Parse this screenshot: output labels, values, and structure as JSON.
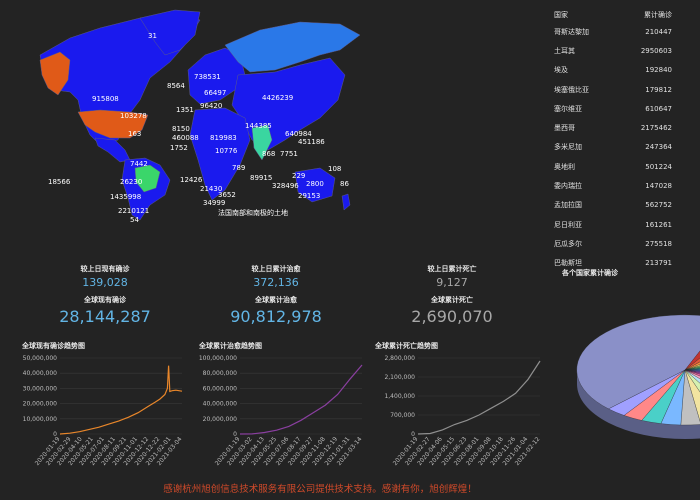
{
  "map": {
    "labels": [
      {
        "text": "31"
      },
      {
        "text": "738531"
      },
      {
        "text": "8564"
      },
      {
        "text": "66497"
      },
      {
        "text": "4426239"
      },
      {
        "text": "915808"
      },
      {
        "text": "96420"
      },
      {
        "text": "1351"
      },
      {
        "text": "103278"
      },
      {
        "text": "163"
      },
      {
        "text": "8150"
      },
      {
        "text": "144385"
      },
      {
        "text": "460088"
      },
      {
        "text": "819983"
      },
      {
        "text": "640984"
      },
      {
        "text": "1752"
      },
      {
        "text": "10776"
      },
      {
        "text": "451186"
      },
      {
        "text": "868"
      },
      {
        "text": "7751"
      },
      {
        "text": "7442"
      },
      {
        "text": "12426"
      },
      {
        "text": "789"
      },
      {
        "text": "108"
      },
      {
        "text": "18566"
      },
      {
        "text": "26230"
      },
      {
        "text": "21430"
      },
      {
        "text": "89915"
      },
      {
        "text": "229"
      },
      {
        "text": "86"
      },
      {
        "text": "328496"
      },
      {
        "text": "2800"
      },
      {
        "text": "1435998"
      },
      {
        "text": "3652"
      },
      {
        "text": "29153"
      },
      {
        "text": "2210121"
      },
      {
        "text": "34999"
      },
      {
        "text": "54"
      },
      {
        "text": "法国南部和南极的土地"
      }
    ]
  },
  "table": {
    "headers": [
      "国家",
      "累计确诊"
    ],
    "rows": [
      {
        "name": "哥斯达黎加",
        "value": "210447"
      },
      {
        "name": "土耳其",
        "value": "2950603"
      },
      {
        "name": "埃及",
        "value": "192840"
      },
      {
        "name": "埃塞俄比亚",
        "value": "179812"
      },
      {
        "name": "塞尔维亚",
        "value": "610647"
      },
      {
        "name": "墨西哥",
        "value": "2175462"
      },
      {
        "name": "多米尼加",
        "value": "247364"
      },
      {
        "name": "奥地利",
        "value": "501224"
      },
      {
        "name": "委内瑞拉",
        "value": "147028"
      },
      {
        "name": "孟加拉国",
        "value": "562752"
      },
      {
        "name": "尼日利亚",
        "value": "161261"
      },
      {
        "name": "厄瓜多尔",
        "value": "275518"
      },
      {
        "name": "巴勒斯坦",
        "value": "213791"
      }
    ]
  },
  "stats": {
    "current": {
      "label1": "较上日现有确诊",
      "value1": "139,028",
      "label2": "全球现有确诊",
      "value2": "28,144,287"
    },
    "cured": {
      "label1": "较上日累计治愈",
      "value1": "372,136",
      "label2": "全球累计治愈",
      "value2": "90,812,978"
    },
    "deaths": {
      "label1": "较上日累计死亡",
      "value1": "9,127",
      "label2": "全球累计死亡",
      "value2": "2,690,070"
    }
  },
  "pie_title": "各个国家累计确诊",
  "footer": "感谢杭州旭创信息技术服务有限公司提供技术支持。感谢有你，旭创辉煌！",
  "chart_data": [
    {
      "type": "line",
      "title": "全球现有确诊趋势图",
      "color": "#e8862a",
      "ylim": [
        0,
        50000000
      ],
      "yticks": [
        "0",
        "10,000,000",
        "20,000,000",
        "30,000,000",
        "40,000,000",
        "50,000,000"
      ],
      "xticks": [
        "2020-01-19",
        "2020-02-29",
        "2020-04-10",
        "2020-05-21",
        "2020-07-01",
        "2020-08-11",
        "2020-09-21",
        "2020-11-01",
        "2020-12-12",
        "2020-12-22",
        "2021-02-01",
        "2021-03-04"
      ],
      "x": [
        0,
        0.08,
        0.16,
        0.24,
        0.32,
        0.4,
        0.48,
        0.56,
        0.64,
        0.72,
        0.78,
        0.82,
        0.86,
        0.88,
        0.89,
        0.9,
        0.92,
        0.95,
        1.0
      ],
      "y": [
        0,
        500000,
        1500000,
        3000000,
        4500000,
        6500000,
        8500000,
        11000000,
        14000000,
        18000000,
        21000000,
        23000000,
        26000000,
        30000000,
        45000000,
        28000000,
        28500000,
        28800000,
        28144287
      ]
    },
    {
      "type": "line",
      "title": "全球累计治愈趋势图",
      "color": "#8a3fa0",
      "ylim": [
        0,
        100000000
      ],
      "yticks": [
        "0",
        "20,000,000",
        "40,000,000",
        "60,000,000",
        "80,000,000",
        "100,000,000"
      ],
      "xticks": [
        "2020-01-19",
        "2020-03-02",
        "2020-04-13",
        "2020-05-25",
        "2020-07-06",
        "2020-08-17",
        "2020-09-27",
        "2020-11-08",
        "2020-12-19",
        "2021-01-31",
        "2021-03-14"
      ],
      "x": [
        0,
        0.1,
        0.2,
        0.3,
        0.4,
        0.5,
        0.6,
        0.7,
        0.8,
        0.9,
        1.0
      ],
      "y": [
        0,
        100000,
        2000000,
        5000000,
        10000000,
        18000000,
        28000000,
        38000000,
        52000000,
        72000000,
        90812978
      ]
    },
    {
      "type": "line",
      "title": "全球累计死亡趋势图",
      "color": "#8f8f8f",
      "ylim": [
        0,
        2800000
      ],
      "yticks": [
        "0",
        "700,000",
        "1,400,000",
        "2,100,000",
        "2,800,000"
      ],
      "xticks": [
        "2020-01-19",
        "2020-02-27",
        "2020-04-06",
        "2020-05-15",
        "2020-06-23",
        "2020-08-01",
        "2020-09-08",
        "2020-10-18",
        "2020-11-26",
        "2021-01-04",
        "2021-02-12"
      ],
      "x": [
        0,
        0.1,
        0.2,
        0.3,
        0.4,
        0.5,
        0.6,
        0.7,
        0.8,
        0.9,
        1.0
      ],
      "y": [
        0,
        20000,
        150000,
        350000,
        500000,
        700000,
        950000,
        1200000,
        1500000,
        2000000,
        2690070
      ]
    },
    {
      "type": "pie",
      "title": "各个国家累计确诊",
      "values": [
        44,
        3,
        3,
        3,
        2,
        2,
        2,
        2,
        2,
        2,
        2,
        2,
        2,
        3,
        3,
        3,
        3,
        3,
        3,
        3,
        3,
        3,
        3
      ],
      "colors": [
        "#8a90c8",
        "#c23531",
        "#e0583a",
        "#f08a3a",
        "#ffd86b",
        "#9bd46b",
        "#5ec26f",
        "#2fae9a",
        "#29a8d6",
        "#3c7fd4",
        "#6a5bd0",
        "#9a44c8",
        "#c84ab8",
        "#e060a0",
        "#f5a3c0",
        "#b8e0f5",
        "#d4f0b0",
        "#f2e4a0",
        "#c0c0c0",
        "#7ab8ff",
        "#4ad0c8",
        "#ff8888",
        "#a0a0ff"
      ]
    }
  ]
}
